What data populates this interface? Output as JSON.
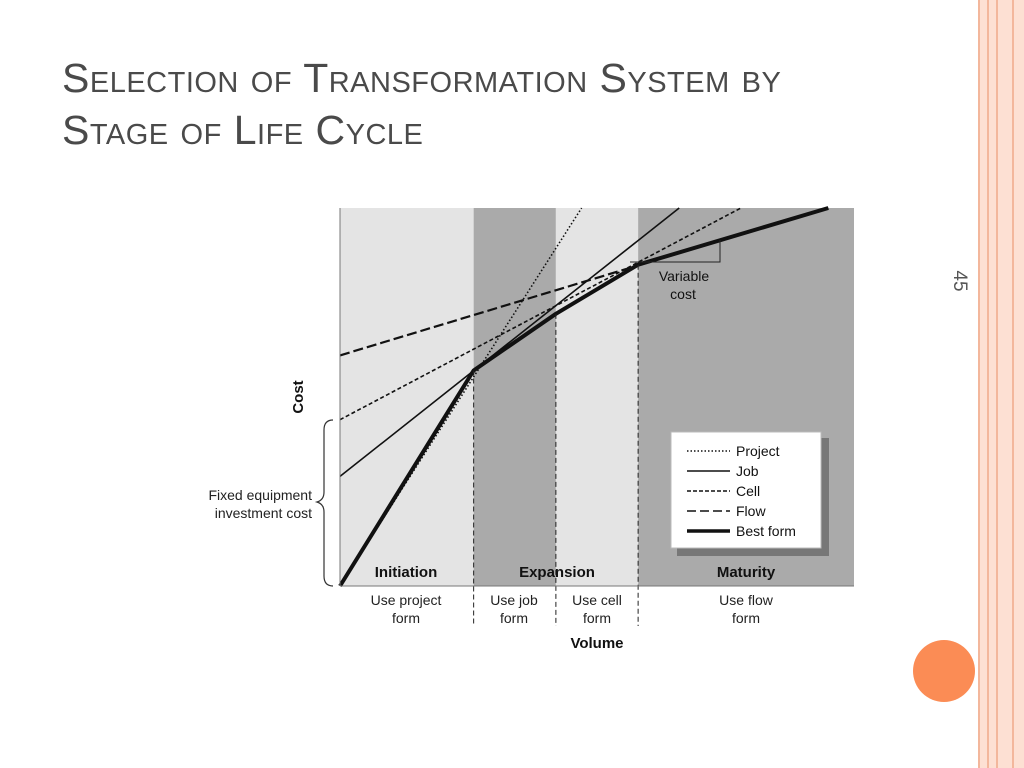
{
  "slide": {
    "title_line1": "Selection of Transformation System by",
    "title_line2": "Stage of Life Cycle",
    "page_number": "45",
    "accent_color": "#fb8c55",
    "border_color": "#f9c9b6"
  },
  "chart_data": {
    "type": "line",
    "title": "",
    "xlabel": "Volume",
    "ylabel": "Cost",
    "xlim": [
      0,
      100
    ],
    "ylim": [
      0,
      100
    ],
    "grid": false,
    "legend_position": "bottom-right",
    "series": [
      {
        "name": "Project",
        "style": "dotted",
        "points": [
          [
            0,
            0
          ],
          [
            47,
            100
          ]
        ]
      },
      {
        "name": "Job",
        "style": "solid",
        "points": [
          [
            0,
            29
          ],
          [
            66,
            100
          ]
        ]
      },
      {
        "name": "Cell",
        "style": "dashed",
        "points": [
          [
            0,
            44
          ],
          [
            78,
            100
          ]
        ]
      },
      {
        "name": "Flow",
        "style": "longdash",
        "points": [
          [
            0,
            61
          ],
          [
            95,
            100
          ]
        ]
      },
      {
        "name": "Best form",
        "style": "bold",
        "points": [
          [
            0,
            0
          ],
          [
            26,
            57
          ],
          [
            42,
            72
          ],
          [
            58,
            85
          ],
          [
            95,
            100
          ]
        ]
      }
    ],
    "stages": [
      {
        "label": "Initiation",
        "form": [
          "Use project",
          "form"
        ],
        "x_start": 0,
        "x_end": 26,
        "shade": "#e4e4e4"
      },
      {
        "label": "Expansion",
        "form_left": [
          "Use job",
          "form"
        ],
        "form_right": [
          "Use cell",
          "form"
        ],
        "x_start": 26,
        "x_mid": 42,
        "x_end": 58
      },
      {
        "label": "Maturity",
        "form": [
          "Use flow",
          "form"
        ],
        "x_start": 58,
        "x_end": 100,
        "shade": "#aaaaaa"
      }
    ],
    "annotations": {
      "variable_cost": [
        "Variable",
        "cost"
      ],
      "fixed_cost": [
        "Fixed equipment",
        "investment cost"
      ]
    }
  }
}
